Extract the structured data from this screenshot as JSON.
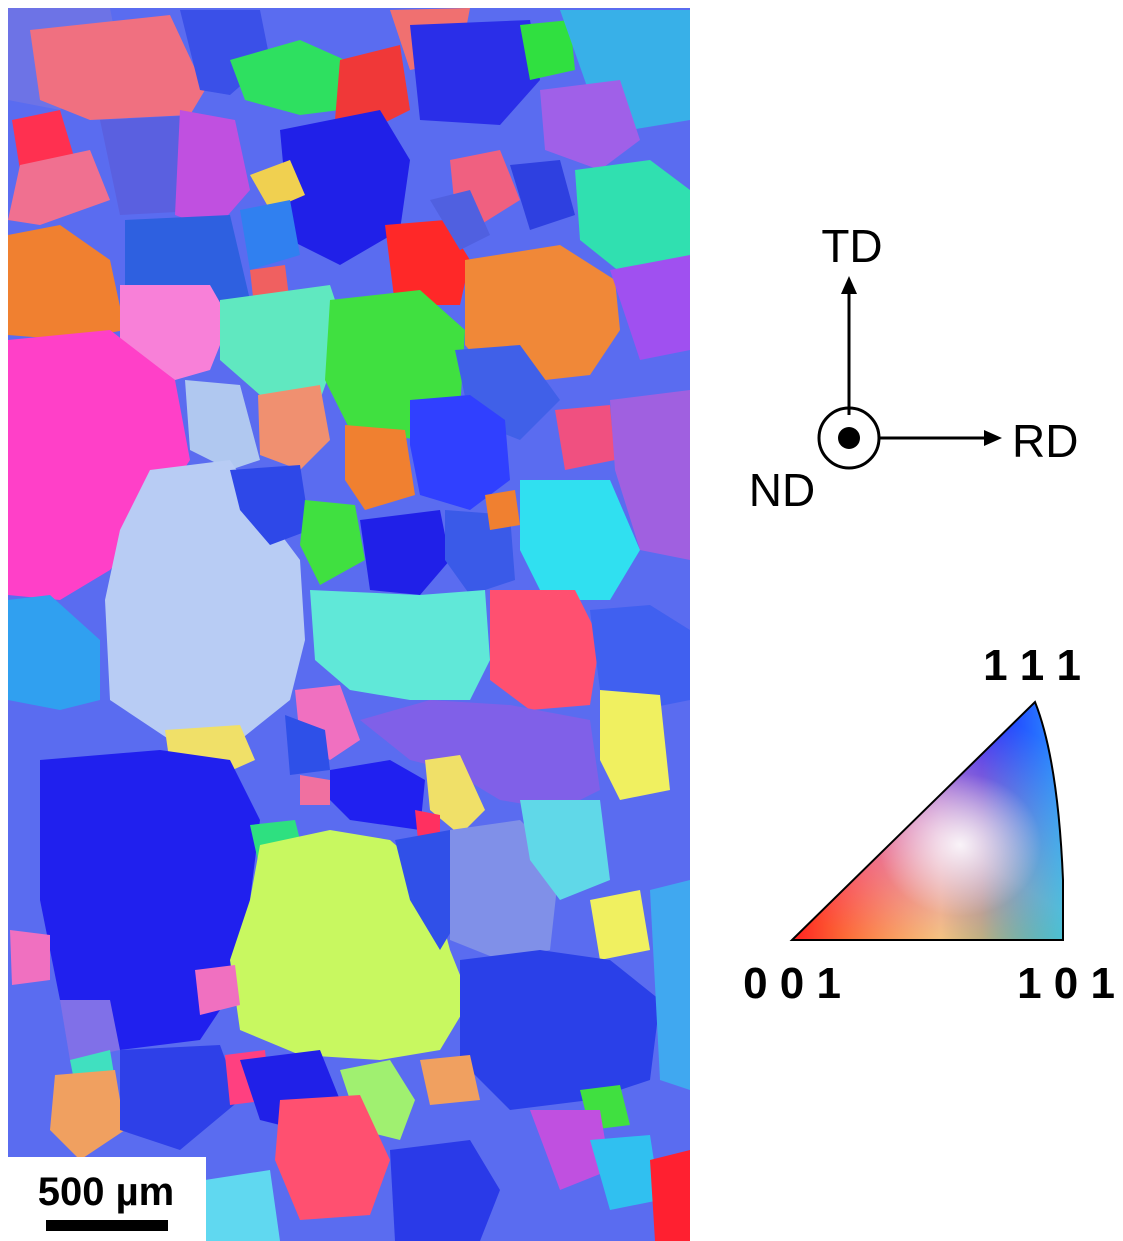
{
  "scale_bar": {
    "label": "500 µm"
  },
  "axes": {
    "up": "TD",
    "right": "RD",
    "normal": "ND"
  },
  "legend": {
    "top": "1 1 1",
    "left": "0 0 1",
    "right": "1 0 1"
  }
}
